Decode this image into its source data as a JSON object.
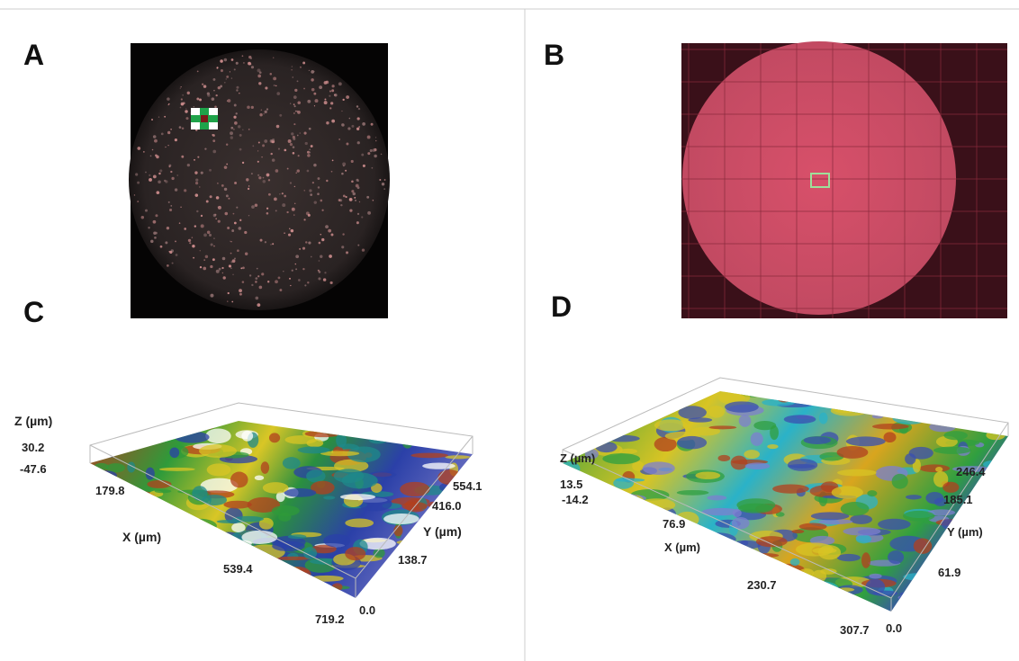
{
  "panels": [
    {
      "label": "A"
    },
    {
      "label": "B"
    },
    {
      "label": "C",
      "z_axis_label": "Z (µm)",
      "x_axis_label": "X (µm)",
      "y_axis_label": "Y (µm)",
      "z_ticks": [
        "30.2",
        "-47.6"
      ],
      "x_ticks": [
        "179.8",
        "539.4",
        "719.2"
      ],
      "y_ticks": [
        "0.0",
        "138.7",
        "416.0",
        "554.1"
      ]
    },
    {
      "label": "D",
      "z_axis_label": "Z (µm)",
      "x_axis_label": "X (µm)",
      "y_axis_label": "Y (µm)",
      "z_ticks": [
        "13.5",
        "-14.2"
      ],
      "x_ticks": [
        "76.9",
        "230.7",
        "307.7"
      ],
      "y_ticks": [
        "0.0",
        "61.9",
        "185.1",
        "246.4"
      ]
    }
  ]
}
